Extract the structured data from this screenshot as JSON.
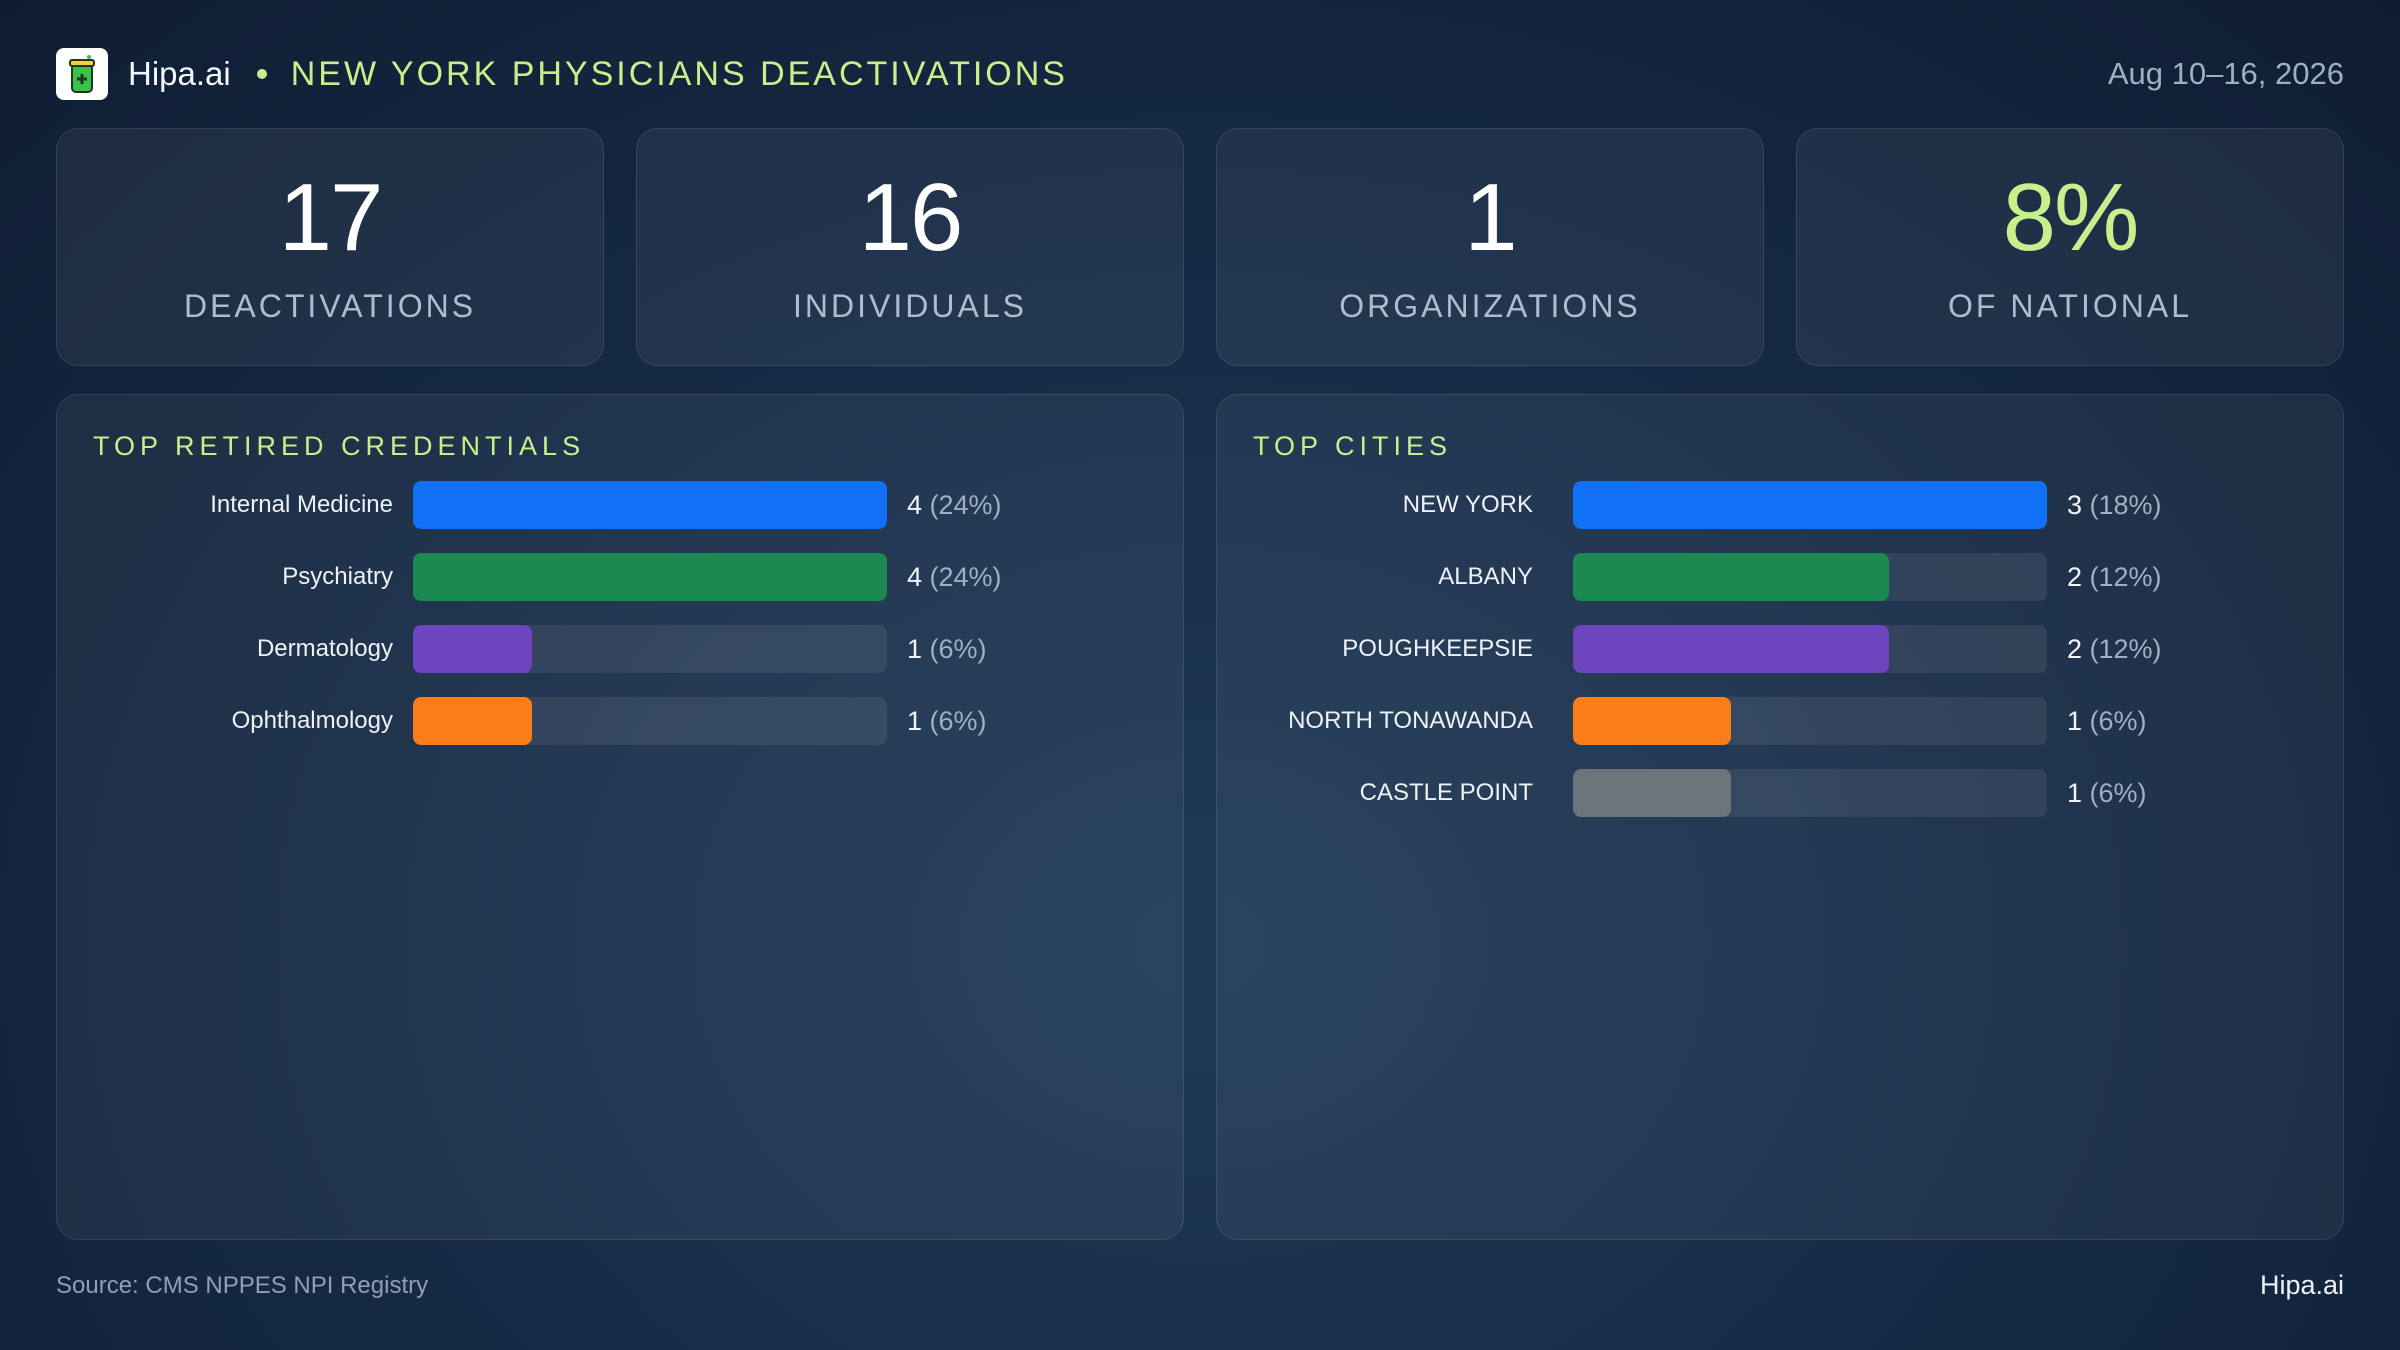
{
  "header": {
    "brand": "Hipa.ai",
    "title": "NEW YORK PHYSICIANS DEACTIVATIONS",
    "date_range": "Aug 10–16, 2026"
  },
  "kpis": [
    {
      "value": "17",
      "label": "DEACTIVATIONS"
    },
    {
      "value": "16",
      "label": "INDIVIDUALS"
    },
    {
      "value": "1",
      "label": "ORGANIZATIONS"
    },
    {
      "value": "8%",
      "label": "OF NATIONAL"
    }
  ],
  "colors": {
    "accent": "#c6f08c",
    "blue": "#1070f6",
    "green": "#1c8a50",
    "purple": "#6e44bf",
    "orange": "#fa7d18",
    "gray": "#6c737b"
  },
  "chart_data": [
    {
      "type": "bar",
      "title": "TOP RETIRED CREDENTIALS",
      "orientation": "horizontal",
      "categories": [
        "Internal Medicine",
        "Psychiatry",
        "Dermatology",
        "Ophthalmology"
      ],
      "values": [
        4,
        4,
        1,
        1
      ],
      "labels": [
        "4 (24%)",
        "4 (24%)",
        "1 (6%)",
        "1 (6%)"
      ],
      "colors": [
        "#1070f6",
        "#1c8a50",
        "#6e44bf",
        "#fa7d18"
      ],
      "xlim": [
        0,
        4
      ]
    },
    {
      "type": "bar",
      "title": "TOP CITIES",
      "orientation": "horizontal",
      "categories": [
        "NEW YORK",
        "ALBANY",
        "POUGHKEEPSIE",
        "NORTH TONAWANDA",
        "CASTLE POINT"
      ],
      "values": [
        3,
        2,
        2,
        1,
        1
      ],
      "labels": [
        "3 (18%)",
        "2 (12%)",
        "2 (12%)",
        "1 (6%)",
        "1 (6%)"
      ],
      "colors": [
        "#1070f6",
        "#1c8a50",
        "#6e44bf",
        "#fa7d18",
        "#6c737b"
      ],
      "xlim": [
        0,
        3
      ]
    }
  ],
  "footer": {
    "source": "Source: CMS NPPES NPI Registry",
    "brand": "Hipa.ai"
  }
}
